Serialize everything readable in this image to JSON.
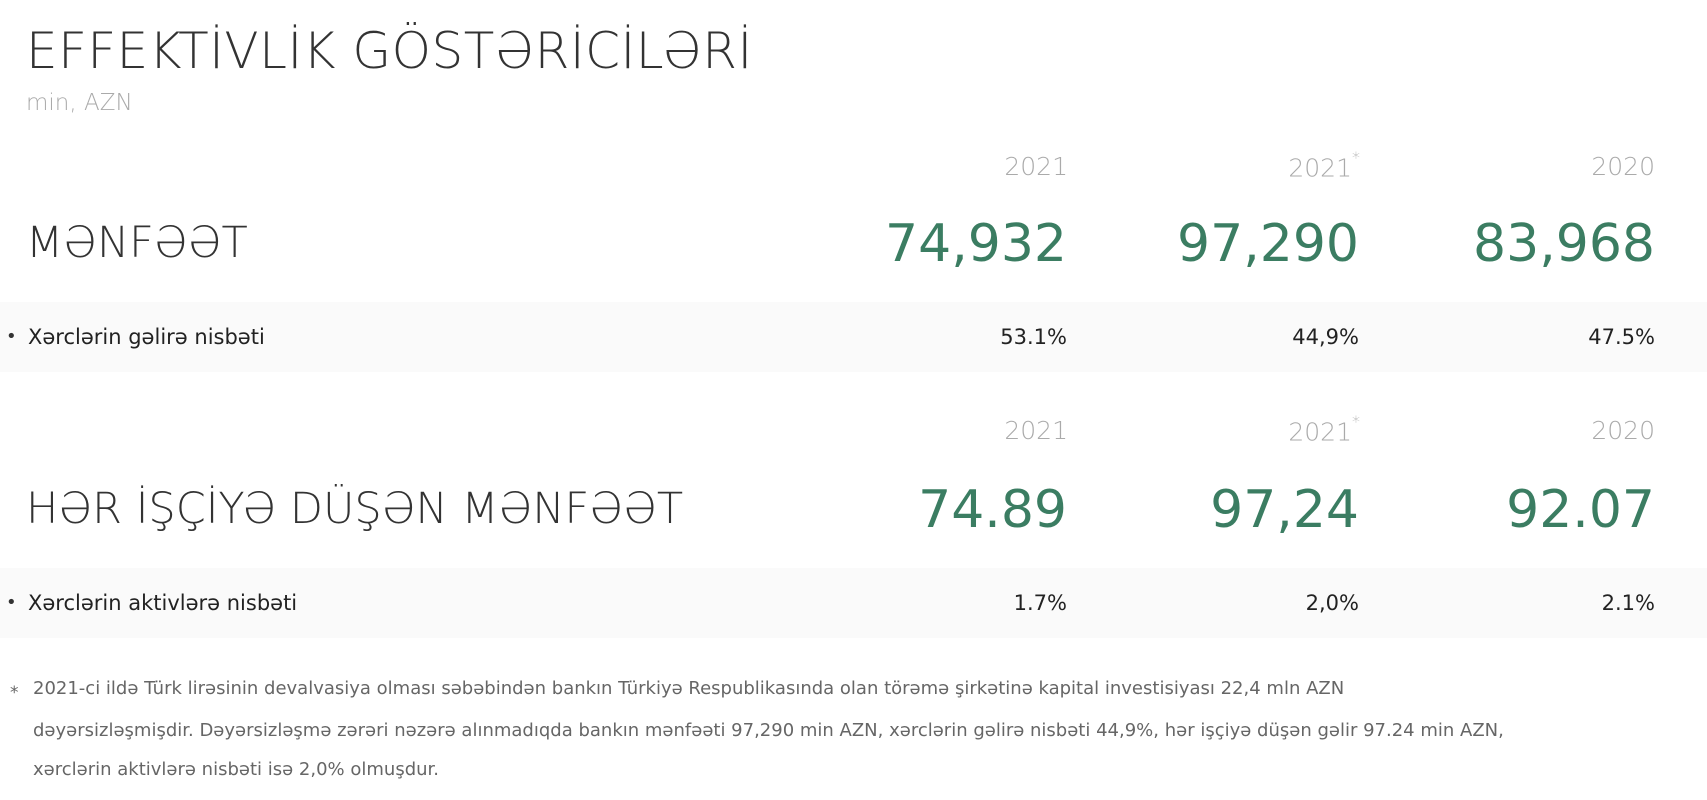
{
  "title": "EFFEKTİVLİK GÖSTƏRİCİLƏRİ",
  "unit": "min, AZN",
  "accent_color": "#3b7d62",
  "sections": [
    {
      "years": [
        {
          "label": "2021",
          "mark": ""
        },
        {
          "label": "2021",
          "mark": "*"
        },
        {
          "label": "2020",
          "mark": ""
        }
      ],
      "label": "MƏNFƏƏT",
      "values": [
        "74,932",
        "97,290",
        "83,968"
      ],
      "row": {
        "label": "Xərclərin gəlirə nisbəti",
        "values": [
          "53.1%",
          "44,9%",
          "47.5%"
        ]
      }
    },
    {
      "years": [
        {
          "label": "2021",
          "mark": ""
        },
        {
          "label": "2021",
          "mark": "*"
        },
        {
          "label": "2020",
          "mark": ""
        }
      ],
      "label": "HƏR İŞÇİYƏ DÜŞƏN MƏNFƏƏT",
      "values": [
        "74.89",
        "97,24",
        "92.07"
      ],
      "row": {
        "label": "Xərclərin aktivlərə nisbəti",
        "values": [
          "1.7%",
          "2,0%",
          "2.1%"
        ]
      }
    }
  ],
  "footnote": {
    "mark": "*",
    "lines": [
      "2021-ci ildə Türk lirəsinin devalvasiya olması səbəbindən bankın Türkiyə Respublikasında olan törəmə şirkətinə kapital investisiyası 22,4 mln AZN",
      "dəyərsizləşmişdir. Dəyərsizləşmə zərəri nəzərə alınmadıqda bankın mənfəəti 97,290 min AZN, xərclərin gəlirə nisbəti 44,9%, hər işçiyə düşən gəlir 97.24 min AZN,",
      "xərclərin aktivlərə nisbəti isə 2,0% olmuşdur."
    ]
  }
}
